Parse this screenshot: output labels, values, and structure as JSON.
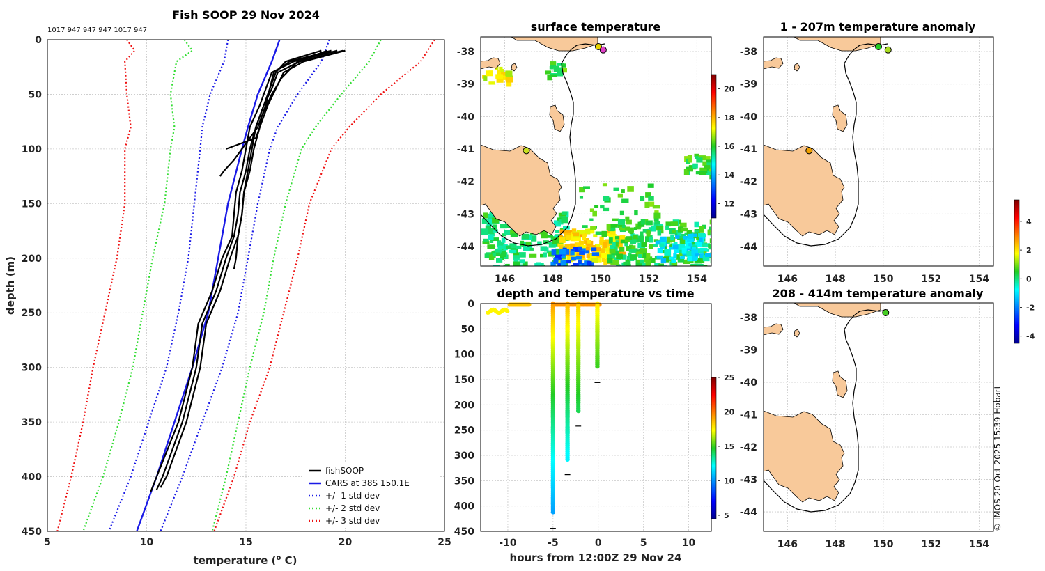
{
  "chart_data": [
    {
      "type": "line",
      "title": "Fish SOOP 29 Nov 2024",
      "top_annotation": "1017 947 947 947 1017 947",
      "xlabel": "temperature (",
      "xlabel_sup": "o",
      "xlabel_tail": " C)",
      "ylabel": "depth (m)",
      "xlim": [
        5,
        25
      ],
      "ylim": [
        450,
        0
      ],
      "xticks": [
        "5",
        "10",
        "15",
        "20",
        "25"
      ],
      "yticks": [
        "0",
        "50",
        "100",
        "150",
        "200",
        "250",
        "300",
        "350",
        "400",
        "450"
      ],
      "legend": [
        "fishSOOP",
        "CARS at 38S 150.1E",
        "+/- 1 std dev",
        "+/- 2 std dev",
        "+/- 3 std dev"
      ],
      "colors": {
        "fishSOOP": "#000000",
        "cars": "#1a1ae6",
        "std1": "#1a1ae6",
        "std2": "#33dd33",
        "std3": "#ee1111"
      },
      "cars_profile": {
        "depth": [
          0,
          20,
          50,
          80,
          100,
          150,
          200,
          250,
          300,
          350,
          400,
          450
        ],
        "temp": [
          16.7,
          16.3,
          15.6,
          15.1,
          14.8,
          14.1,
          13.6,
          13.1,
          12.3,
          11.4,
          10.5,
          9.5
        ]
      },
      "std1_left": {
        "depth": [
          0,
          20,
          50,
          80,
          100,
          150,
          200,
          250,
          300,
          350,
          400,
          450
        ],
        "temp": [
          14.1,
          13.9,
          13.2,
          12.8,
          12.7,
          12.4,
          12.1,
          11.6,
          11.0,
          10.1,
          9.2,
          8.1
        ]
      },
      "std1_right": {
        "depth": [
          0,
          20,
          50,
          80,
          100,
          150,
          200,
          250,
          300,
          350,
          400,
          450
        ],
        "temp": [
          19.2,
          18.8,
          17.6,
          16.6,
          16.2,
          15.6,
          15.1,
          14.6,
          13.8,
          12.8,
          11.8,
          10.7
        ]
      },
      "std2_left": {
        "depth": [
          0,
          10,
          20,
          50,
          80,
          100,
          150,
          200,
          250,
          300,
          350,
          400,
          450
        ],
        "temp": [
          11.9,
          12.3,
          11.5,
          11.2,
          11.4,
          11.2,
          10.9,
          10.3,
          9.8,
          9.3,
          8.6,
          7.8,
          6.8
        ]
      },
      "std2_right": {
        "depth": [
          0,
          20,
          50,
          80,
          100,
          150,
          200,
          250,
          300,
          350,
          400,
          450
        ],
        "temp": [
          21.8,
          21.2,
          19.8,
          18.5,
          17.8,
          17.0,
          16.4,
          15.9,
          15.2,
          14.6,
          14.0,
          13.3
        ]
      },
      "std3_left": {
        "depth": [
          0,
          10,
          20,
          50,
          80,
          100,
          150,
          200,
          250,
          300,
          350,
          400,
          450
        ],
        "temp": [
          9.0,
          9.4,
          8.9,
          9.0,
          9.2,
          8.9,
          8.9,
          8.5,
          7.9,
          7.3,
          6.8,
          6.2,
          5.5
        ]
      },
      "std3_right": {
        "depth": [
          0,
          20,
          50,
          80,
          100,
          150,
          200,
          250,
          300,
          350,
          400,
          450
        ],
        "temp": [
          24.5,
          23.8,
          21.8,
          20.2,
          19.3,
          18.2,
          17.6,
          16.9,
          16.2,
          15.2,
          14.4,
          13.4
        ]
      },
      "fish_profiles": [
        {
          "depth": [
            10,
            20,
            30,
            45,
            60,
            80,
            100,
            120,
            140,
            160,
            180,
            200,
            230,
            260,
            300,
            350,
            400,
            414
          ],
          "temp": [
            19.6,
            17.4,
            16.3,
            16.0,
            15.7,
            15.2,
            15.0,
            14.8,
            14.5,
            14.4,
            14.3,
            13.8,
            13.3,
            12.6,
            12.3,
            11.6,
            10.5,
            10.2
          ]
        },
        {
          "depth": [
            10,
            20,
            30,
            45,
            60,
            80,
            100,
            120,
            140,
            160,
            180,
            200,
            230,
            260,
            300,
            350,
            400,
            412
          ],
          "temp": [
            19.9,
            17.7,
            16.6,
            16.3,
            15.9,
            15.5,
            15.2,
            15.0,
            14.7,
            14.6,
            14.4,
            14.0,
            13.5,
            12.8,
            12.5,
            11.8,
            10.8,
            10.5
          ]
        },
        {
          "depth": [
            10,
            20,
            30,
            45,
            60,
            80,
            100,
            120,
            140,
            160,
            180,
            200,
            230,
            260,
            300,
            350,
            400,
            410
          ],
          "temp": [
            20.0,
            17.9,
            16.9,
            16.5,
            16.1,
            15.7,
            15.4,
            15.2,
            14.9,
            14.8,
            14.6,
            14.2,
            13.7,
            13.0,
            12.7,
            12.0,
            11.0,
            10.7
          ]
        },
        {
          "depth": [
            10,
            20,
            30,
            45,
            60,
            80,
            100,
            120,
            140,
            160,
            180,
            200,
            210
          ],
          "temp": [
            19.3,
            17.2,
            16.4,
            16.2,
            15.9,
            15.5,
            15.3,
            15.1,
            14.9,
            14.8,
            14.6,
            14.5,
            14.4
          ]
        },
        {
          "depth": [
            10,
            20,
            30,
            45,
            60,
            80,
            100,
            110,
            120,
            125
          ],
          "temp": [
            18.8,
            17.0,
            16.5,
            16.2,
            16.0,
            15.6,
            14.8,
            14.4,
            13.9,
            13.7
          ]
        },
        {
          "depth": [
            10,
            20,
            35,
            50,
            70,
            80,
            90,
            100
          ],
          "temp": [
            19.1,
            17.6,
            16.8,
            16.3,
            15.8,
            15.7,
            15.5,
            14.0
          ]
        }
      ]
    },
    {
      "type": "heatmap",
      "title": "surface temperature",
      "xticks": [
        "146",
        "148",
        "150",
        "152",
        "154"
      ],
      "yticks": [
        "-38",
        "-39",
        "-40",
        "-41",
        "-42",
        "-43",
        "-44"
      ],
      "colorbar_ticks": [
        "12",
        "14",
        "16",
        "18",
        "20"
      ],
      "clim": [
        11,
        21
      ],
      "markers": [
        {
          "lon": 149.9,
          "lat": -37.85,
          "color": "#e8d400"
        },
        {
          "lon": 150.1,
          "lat": -37.95,
          "color": "#e040c8"
        },
        {
          "lon": 146.9,
          "lat": -41.05,
          "color": "#c8e020"
        }
      ]
    },
    {
      "type": "scatter",
      "title": "depth and temperature vs time",
      "xlabel": "hours from 12:00Z 29 Nov 24",
      "xlim": [
        -13,
        12.5
      ],
      "ylim": [
        450,
        0
      ],
      "xticks": [
        "-10",
        "-5",
        "0",
        "5",
        "10"
      ],
      "yticks": [
        "0",
        "50",
        "100",
        "150",
        "200",
        "250",
        "300",
        "350",
        "400",
        "450"
      ],
      "colorbar_ticks": [
        "5",
        "10",
        "15",
        "20",
        "25"
      ],
      "clim": [
        4.5,
        25
      ],
      "casts": [
        {
          "hour": -5.0,
          "max_depth": 414,
          "t_top": 19.5,
          "t_bottom": 10.3
        },
        {
          "hour": -3.4,
          "max_depth": 308,
          "t_top": 19.0,
          "t_bottom": 12.0
        },
        {
          "hour": -2.2,
          "max_depth": 212,
          "t_top": 18.5,
          "t_bottom": 14.2
        },
        {
          "hour": -0.1,
          "max_depth": 126,
          "t_top": 18.0,
          "t_bottom": 15.0
        }
      ]
    },
    {
      "type": "heatmap",
      "title": "1 - 207m temperature anomaly",
      "xticks": [
        "146",
        "148",
        "150",
        "152",
        "154"
      ],
      "yticks": [
        "-38",
        "-39",
        "-40",
        "-41",
        "-42",
        "-43",
        "-44"
      ],
      "colorbar_ticks": [
        "-4",
        "-2",
        "0",
        "2",
        "4"
      ],
      "clim": [
        -4.5,
        5.5
      ],
      "markers": [
        {
          "lon": 149.8,
          "lat": -37.85,
          "color": "#22cc22"
        },
        {
          "lon": 150.2,
          "lat": -37.95,
          "color": "#aadd22"
        },
        {
          "lon": 146.9,
          "lat": -41.05,
          "color": "#f0a000"
        }
      ]
    },
    {
      "type": "heatmap",
      "title": "208 - 414m temperature anomaly",
      "xticks": [
        "146",
        "148",
        "150",
        "152",
        "154"
      ],
      "yticks": [
        "-38",
        "-39",
        "-40",
        "-41",
        "-42",
        "-43",
        "-44"
      ],
      "markers": [
        {
          "lon": 150.1,
          "lat": -37.85,
          "color": "#44cc22"
        }
      ]
    }
  ],
  "credit": "© IMOS 20-Oct-2025 15:39 Hobart"
}
